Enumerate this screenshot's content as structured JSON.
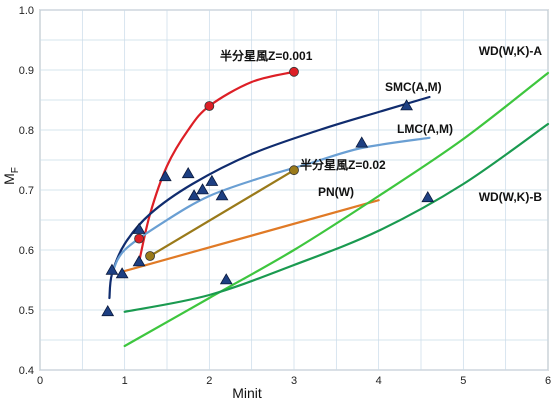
{
  "chart_data": {
    "type": "line",
    "xlabel": "Minit",
    "ylabel_main": "M",
    "ylabel_sub": "F",
    "xlim": [
      0,
      6
    ],
    "ylim": [
      0.4,
      1.0
    ],
    "xticks": [
      "0",
      "1",
      "2",
      "3",
      "4",
      "5",
      "6"
    ],
    "yticks": [
      "0.4",
      "0.5",
      "0.6",
      "0.7",
      "0.8",
      "0.9",
      "1.0"
    ],
    "grid": true,
    "series": [
      {
        "name": "半分星風Z=0.001",
        "color": "#dd1f26",
        "marker": "circle",
        "line": [
          [
            1.17,
            0.58
          ],
          [
            1.3,
            0.66
          ],
          [
            1.5,
            0.74
          ],
          [
            1.75,
            0.8
          ],
          [
            2.0,
            0.84
          ],
          [
            2.5,
            0.88
          ],
          [
            3.0,
            0.897
          ]
        ],
        "points": [
          [
            1.17,
            0.619
          ],
          [
            2.0,
            0.84
          ],
          [
            3.0,
            0.897
          ]
        ]
      },
      {
        "name": "SMC(A,M)",
        "color": "#102c6e",
        "marker": "none",
        "line": [
          [
            0.82,
            0.52
          ],
          [
            0.85,
            0.56
          ],
          [
            1.0,
            0.61
          ],
          [
            1.3,
            0.66
          ],
          [
            1.8,
            0.71
          ],
          [
            2.5,
            0.76
          ],
          [
            3.3,
            0.8
          ],
          [
            4.0,
            0.83
          ],
          [
            4.6,
            0.855
          ]
        ],
        "points": []
      },
      {
        "name": "LMC(A,M)",
        "color": "#6a9fd3",
        "marker": "none",
        "line": [
          [
            0.85,
            0.56
          ],
          [
            1.0,
            0.6
          ],
          [
            1.5,
            0.65
          ],
          [
            2.0,
            0.69
          ],
          [
            2.6,
            0.72
          ],
          [
            3.2,
            0.745
          ],
          [
            3.8,
            0.77
          ],
          [
            4.6,
            0.787
          ]
        ],
        "points": []
      },
      {
        "name": "半分星風Z=0.02",
        "color": "#9a7a1a",
        "marker": "circle",
        "line": [
          [
            1.3,
            0.59
          ],
          [
            3.0,
            0.733
          ]
        ],
        "points": [
          [
            1.3,
            0.59
          ],
          [
            3.0,
            0.733
          ]
        ]
      },
      {
        "name": "PN(W)",
        "color": "#e07a26",
        "marker": "none",
        "line": [
          [
            1.0,
            0.565
          ],
          [
            4.0,
            0.683
          ]
        ],
        "points": []
      },
      {
        "name": "WD(W,K)-A",
        "color": "#3ec63e",
        "marker": "none",
        "line": [
          [
            1.0,
            0.44
          ],
          [
            2.0,
            0.52
          ],
          [
            3.0,
            0.6
          ],
          [
            4.0,
            0.69
          ],
          [
            5.0,
            0.785
          ],
          [
            6.0,
            0.895
          ]
        ],
        "points": []
      },
      {
        "name": "WD(W,K)-B",
        "color": "#1a9a50",
        "marker": "none",
        "line": [
          [
            1.0,
            0.497
          ],
          [
            2.0,
            0.525
          ],
          [
            3.0,
            0.575
          ],
          [
            4.0,
            0.632
          ],
          [
            5.0,
            0.71
          ],
          [
            6.0,
            0.81
          ]
        ],
        "points": []
      },
      {
        "name": "",
        "color": "#1c3a7a",
        "marker": "triangle",
        "line": [],
        "points": [
          [
            0.8,
            0.497
          ],
          [
            0.85,
            0.566
          ],
          [
            0.97,
            0.56
          ],
          [
            1.17,
            0.58
          ],
          [
            1.17,
            0.634
          ],
          [
            1.48,
            0.722
          ],
          [
            1.75,
            0.727
          ],
          [
            1.82,
            0.69
          ],
          [
            1.92,
            0.7
          ],
          [
            2.03,
            0.714
          ],
          [
            2.15,
            0.69
          ],
          [
            2.2,
            0.55
          ],
          [
            3.8,
            0.778
          ],
          [
            4.33,
            0.84
          ],
          [
            4.58,
            0.687
          ]
        ]
      }
    ]
  }
}
